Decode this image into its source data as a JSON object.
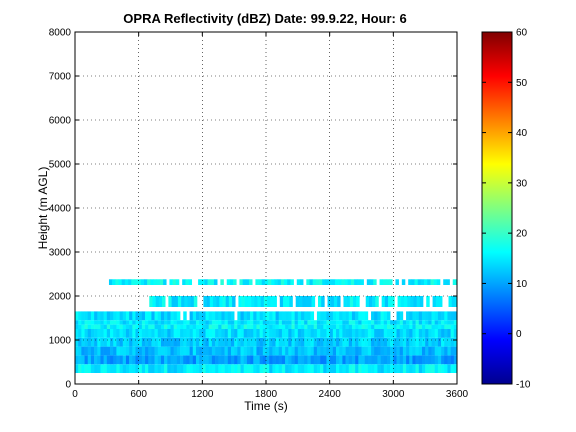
{
  "chart_data": {
    "type": "heatmap",
    "title": "OPRA Reflectivity (dBZ)  Date: 99.9.22, Hour: 6",
    "xlabel": "Time (s)",
    "ylabel": "Height (m AGL)",
    "xlim": [
      0,
      3600
    ],
    "ylim": [
      0,
      8000
    ],
    "x_ticks": [
      0,
      600,
      1200,
      1800,
      2400,
      3000,
      3600
    ],
    "y_ticks": [
      0,
      1000,
      2000,
      3000,
      4000,
      5000,
      6000,
      7000,
      8000
    ],
    "grid": true,
    "colorbar": {
      "range": [
        -10,
        60
      ],
      "ticks": [
        -10,
        0,
        10,
        20,
        30,
        40,
        50,
        60
      ],
      "colormap": "jet"
    },
    "layers": [
      {
        "y0": 250,
        "y1": 450,
        "x0": 0,
        "x1": 3600,
        "dbz": 15
      },
      {
        "y0": 450,
        "y1": 650,
        "x0": 0,
        "x1": 3600,
        "dbz": 10
      },
      {
        "y0": 650,
        "y1": 850,
        "x0": 0,
        "x1": 3600,
        "dbz": 12
      },
      {
        "y0": 850,
        "y1": 1050,
        "x0": 0,
        "x1": 3600,
        "dbz": 13
      },
      {
        "y0": 1050,
        "y1": 1250,
        "x0": 0,
        "x1": 3600,
        "dbz": 14
      },
      {
        "y0": 1250,
        "y1": 1350,
        "x0": 0,
        "x1": 3600,
        "dbz": 16
      },
      {
        "y0": 1350,
        "y1": 1450,
        "x0": 0,
        "x1": 3600,
        "dbz": 15
      },
      {
        "y0": 1450,
        "y1": 1650,
        "x0": 0,
        "x1": 3600,
        "dbz": 14
      },
      {
        "y0": 1750,
        "y1": 2000,
        "x0": 700,
        "x1": 3600,
        "dbz": 15
      },
      {
        "y0": 2250,
        "y1": 2380,
        "x0": 320,
        "x1": 3600,
        "dbz": 16
      }
    ]
  }
}
